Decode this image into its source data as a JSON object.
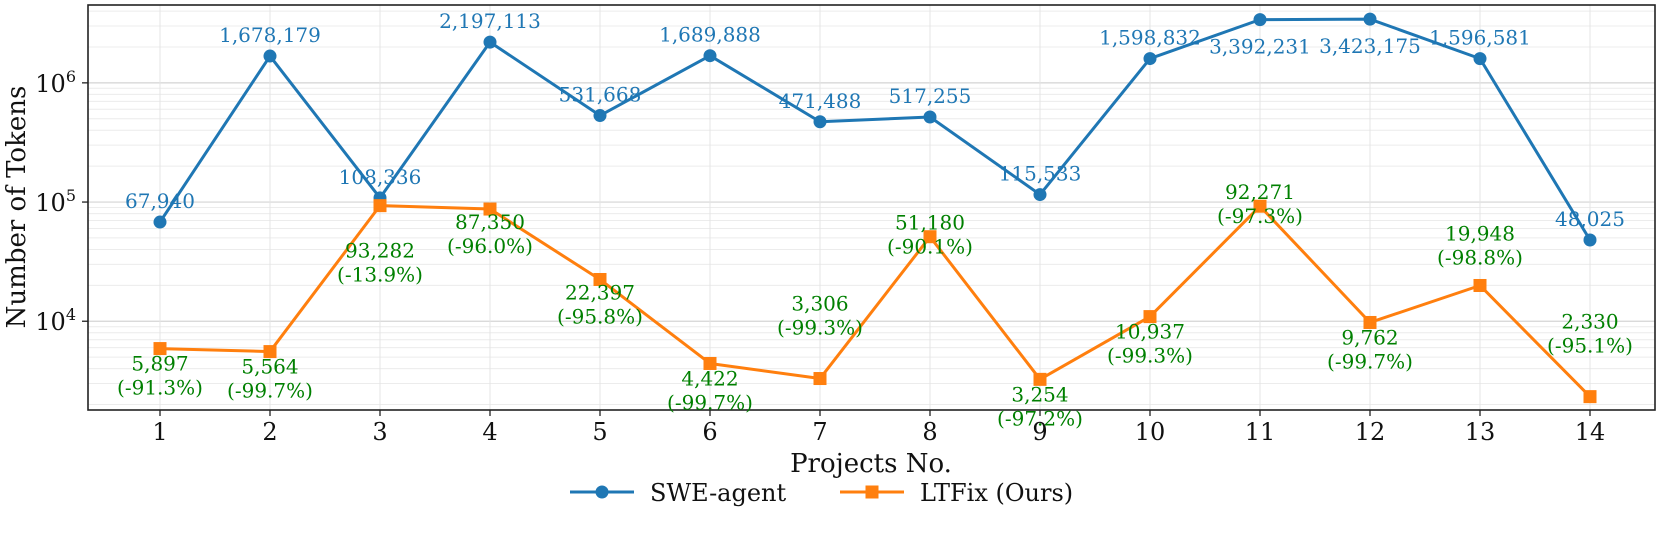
{
  "chart_data": {
    "type": "line",
    "xlabel": "Projects No.",
    "ylabel": "Number of Tokens",
    "yscale": "log",
    "ylim": [
      1800,
      4500000
    ],
    "grid": true,
    "legend_position": "bottom-center",
    "x": [
      "1",
      "2",
      "3",
      "4",
      "5",
      "6",
      "7",
      "8",
      "9",
      "10",
      "11",
      "12",
      "13",
      "14"
    ],
    "y_ticks": [
      {
        "value": 10000,
        "base": "10",
        "exp": "4"
      },
      {
        "value": 100000,
        "base": "10",
        "exp": "5"
      },
      {
        "value": 1000000,
        "base": "10",
        "exp": "6"
      }
    ],
    "series": [
      {
        "name": "SWE-agent",
        "color": "#1f77b4",
        "marker": "circle",
        "values": [
          67940,
          1678179,
          108336,
          2197113,
          531668,
          1689888,
          471488,
          517255,
          115533,
          1598832,
          3392231,
          3423175,
          1596581,
          48025
        ],
        "labels": [
          "67,940",
          "1,678,179",
          "108,336",
          "2,197,113",
          "531,668",
          "1,689,888",
          "471,488",
          "517,255",
          "115,533",
          "1,598,832",
          "3,392,231",
          "3,423,175",
          "1,596,581",
          "48,025"
        ]
      },
      {
        "name": "LTFix (Ours)",
        "color": "#ff7f0e",
        "label_color": "#008000",
        "marker": "square",
        "values": [
          5897,
          5564,
          93282,
          87350,
          22397,
          4422,
          3306,
          51180,
          3254,
          10937,
          92271,
          9762,
          19948,
          2330
        ],
        "labels": [
          "5,897",
          "5,564",
          "93,282",
          "87,350",
          "22,397",
          "4,422",
          "3,306",
          "51,180",
          "3,254",
          "10,937",
          "92,271",
          "9,762",
          "19,948",
          "2,330"
        ],
        "reductions": [
          "(-91.3%)",
          "(-99.7%)",
          "(-13.9%)",
          "(-96.0%)",
          "(-95.8%)",
          "(-99.7%)",
          "(-99.3%)",
          "(-90.1%)",
          "(-97.2%)",
          "(-99.3%)",
          "(-97.3%)",
          "(-99.7%)",
          "(-98.8%)",
          "(-95.1%)"
        ]
      }
    ]
  }
}
